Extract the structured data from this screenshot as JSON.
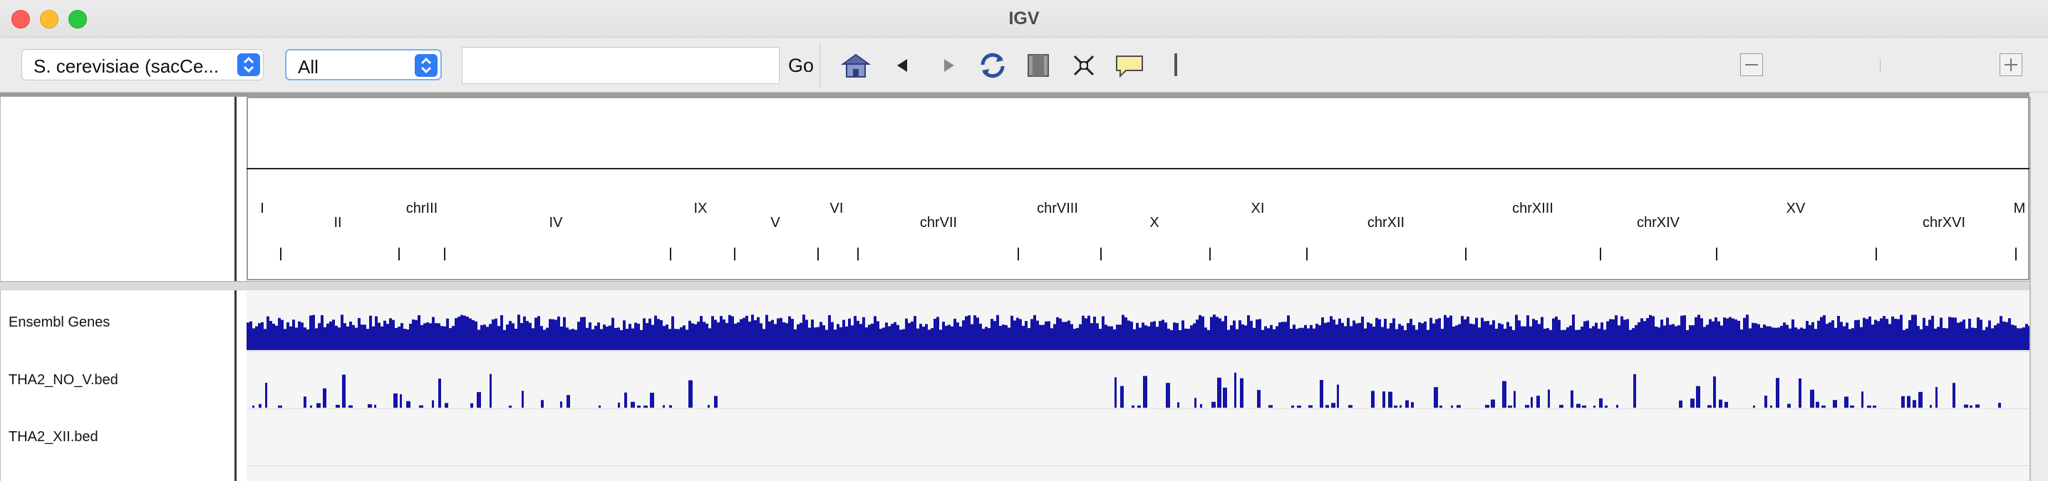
{
  "window": {
    "title": "IGV"
  },
  "toolbar": {
    "genome_select": "S. cerevisiae (sacCe...",
    "chromosome_select": "All",
    "locus_value": "",
    "go_label": "Go",
    "icons": [
      "home-icon",
      "back-icon",
      "forward-icon",
      "refresh-icon",
      "region-icon",
      "resize-icon",
      "popup-info-icon",
      "ruler-icon",
      "zoom-out-icon",
      "zoom-in-icon"
    ]
  },
  "ruler": {
    "chromosomes": [
      {
        "label": "I",
        "row": "top"
      },
      {
        "label": "II",
        "row": "bottom"
      },
      {
        "label": "chrIII",
        "row": "top"
      },
      {
        "label": "IV",
        "row": "bottom"
      },
      {
        "label": "IX",
        "row": "top"
      },
      {
        "label": "V",
        "row": "bottom"
      },
      {
        "label": "VI",
        "row": "top"
      },
      {
        "label": "chrVII",
        "row": "bottom"
      },
      {
        "label": "chrVIII",
        "row": "top"
      },
      {
        "label": "X",
        "row": "bottom"
      },
      {
        "label": "XI",
        "row": "top"
      },
      {
        "label": "chrXII",
        "row": "bottom"
      },
      {
        "label": "chrXIII",
        "row": "top"
      },
      {
        "label": "chrXIV",
        "row": "bottom"
      },
      {
        "label": "XV",
        "row": "top"
      },
      {
        "label": "chrXVI",
        "row": "bottom"
      },
      {
        "label": "M",
        "row": "top"
      }
    ]
  },
  "tracks": [
    {
      "name": "Ensembl Genes",
      "color": "#1414a6",
      "density": "dense"
    },
    {
      "name": "THA2_NO_V.bed",
      "color": "#1414a6",
      "density": "sparse"
    },
    {
      "name": "THA2_XII.bed",
      "color": "#1414a6",
      "density": "empty"
    }
  ],
  "colors": {
    "feature": "#1414a6",
    "accent": "#2f7cf6"
  }
}
